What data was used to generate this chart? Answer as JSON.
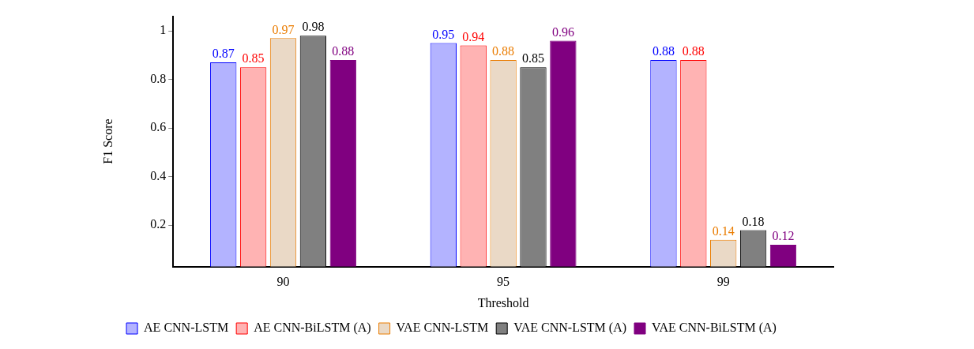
{
  "chart_data": {
    "type": "bar",
    "xlabel": "Threshold",
    "ylabel": "F1 Score",
    "categories": [
      "90",
      "95",
      "99"
    ],
    "series": [
      {
        "name": "AE CNN-LSTM",
        "color": "#b3b3ff",
        "values": [
          0.87,
          0.95,
          0.88
        ]
      },
      {
        "name": "AE CNN-BiLSTM (A)",
        "color": "#ffb3b3",
        "values": [
          0.85,
          0.94,
          0.88
        ]
      },
      {
        "name": "VAE CNN-LSTM",
        "color": "#ead9c6",
        "values": [
          0.97,
          0.88,
          0.14
        ]
      },
      {
        "name": "VAE CNN-LSTM (A)",
        "color": "#808080",
        "values": [
          0.98,
          0.85,
          0.18
        ]
      },
      {
        "name": "VAE CNN-BiLSTM (A)",
        "color": "#800080",
        "values": [
          0.88,
          0.96,
          0.12
        ]
      }
    ],
    "ylim": [
      0.03,
      1.06
    ],
    "yticks": [
      0.2,
      0.4,
      0.6,
      0.8,
      1
    ],
    "data_labels": true,
    "grid": false,
    "legend": "bottom"
  }
}
